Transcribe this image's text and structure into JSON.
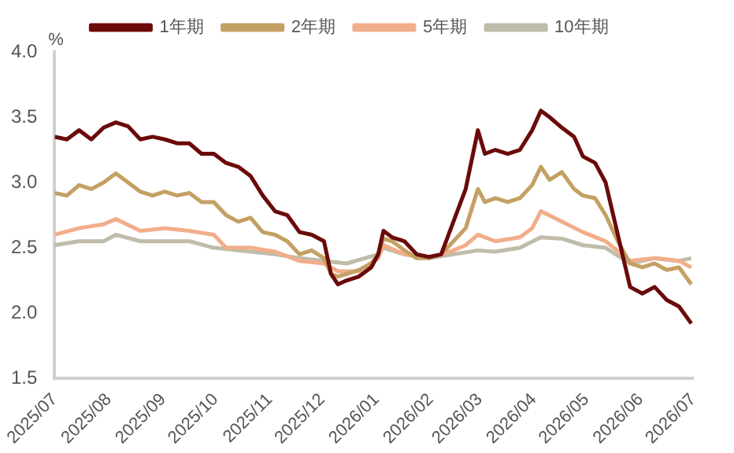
{
  "chart_data": {
    "type": "line",
    "ylabel": "%",
    "legend": "top",
    "grid": false,
    "marker": "none",
    "line_style": "solid",
    "xlim": [
      "2025-07",
      "2026-07"
    ],
    "xticks": [
      {
        "value": "2025-07",
        "label": "2025/07"
      },
      {
        "value": "2025-08",
        "label": "2025/08"
      },
      {
        "value": "2025-09",
        "label": "2025/09"
      },
      {
        "value": "2025-10",
        "label": "2025/10"
      },
      {
        "value": "2025-11",
        "label": "2025/11"
      },
      {
        "value": "2025-12",
        "label": "2025/12"
      },
      {
        "value": "2026-01",
        "label": "2026/01"
      },
      {
        "value": "2026-02",
        "label": "2026/02"
      },
      {
        "value": "2026-03",
        "label": "2026/03"
      },
      {
        "value": "2026-04",
        "label": "2026/04"
      },
      {
        "value": "2026-05",
        "label": "2026/05"
      },
      {
        "value": "2026-06",
        "label": "2026/06"
      },
      {
        "value": "2026-07",
        "label": "2026/07"
      }
    ],
    "ylim": [
      1.5,
      4.0
    ],
    "yticks": [
      {
        "value": 1.5,
        "label": "1.5"
      },
      {
        "value": 2.0,
        "label": "2.0"
      },
      {
        "value": 2.5,
        "label": "2.5"
      },
      {
        "value": 3.0,
        "label": "3.0"
      },
      {
        "value": 3.5,
        "label": "3.5"
      },
      {
        "value": 4.0,
        "label": "4.0"
      }
    ],
    "series": [
      {
        "name": "1年期",
        "color": "#6b0a0a",
        "x": [
          "2025-07-01",
          "2025-07-08",
          "2025-07-15",
          "2025-07-22",
          "2025-07-29",
          "2025-08-05",
          "2025-08-12",
          "2025-08-19",
          "2025-08-26",
          "2025-09-02",
          "2025-09-09",
          "2025-09-16",
          "2025-09-23",
          "2025-09-30",
          "2025-10-07",
          "2025-10-14",
          "2025-10-21",
          "2025-10-28",
          "2025-11-04",
          "2025-11-11",
          "2025-11-18",
          "2025-11-25",
          "2025-12-02",
          "2025-12-06",
          "2025-12-10",
          "2025-12-15",
          "2025-12-22",
          "2025-12-29",
          "2026-01-02",
          "2026-01-05",
          "2026-01-10",
          "2026-01-17",
          "2026-01-24",
          "2026-01-31",
          "2026-02-07",
          "2026-02-14",
          "2026-02-21",
          "2026-02-28",
          "2026-03-04",
          "2026-03-10",
          "2026-03-17",
          "2026-03-24",
          "2026-03-31",
          "2026-04-05",
          "2026-04-10",
          "2026-04-17",
          "2026-04-24",
          "2026-04-29",
          "2026-05-06",
          "2026-05-12",
          "2026-05-19",
          "2026-05-26",
          "2026-06-02",
          "2026-06-09",
          "2026-06-16",
          "2026-06-23",
          "2026-06-30"
        ],
        "values": [
          3.35,
          3.33,
          3.4,
          3.33,
          3.42,
          3.46,
          3.43,
          3.33,
          3.35,
          3.33,
          3.3,
          3.3,
          3.22,
          3.22,
          3.15,
          3.12,
          3.05,
          2.9,
          2.78,
          2.75,
          2.62,
          2.6,
          2.55,
          2.3,
          2.22,
          2.25,
          2.28,
          2.35,
          2.45,
          2.63,
          2.58,
          2.55,
          2.45,
          2.43,
          2.45,
          2.7,
          2.95,
          3.4,
          3.22,
          3.25,
          3.22,
          3.25,
          3.4,
          3.55,
          3.5,
          3.42,
          3.35,
          3.2,
          3.15,
          3.0,
          2.6,
          2.2,
          2.15,
          2.2,
          2.1,
          2.05,
          1.92
        ]
      },
      {
        "name": "2年期",
        "color": "#c4a063",
        "x": [
          "2025-07-01",
          "2025-07-08",
          "2025-07-15",
          "2025-07-22",
          "2025-07-29",
          "2025-08-05",
          "2025-08-12",
          "2025-08-19",
          "2025-08-26",
          "2025-09-02",
          "2025-09-09",
          "2025-09-16",
          "2025-09-23",
          "2025-09-30",
          "2025-10-07",
          "2025-10-14",
          "2025-10-21",
          "2025-10-28",
          "2025-11-04",
          "2025-11-11",
          "2025-11-18",
          "2025-11-25",
          "2025-12-02",
          "2025-12-06",
          "2025-12-10",
          "2025-12-15",
          "2025-12-22",
          "2025-12-29",
          "2026-01-02",
          "2026-01-05",
          "2026-01-10",
          "2026-01-17",
          "2026-01-24",
          "2026-01-31",
          "2026-02-07",
          "2026-02-14",
          "2026-02-21",
          "2026-02-28",
          "2026-03-04",
          "2026-03-10",
          "2026-03-17",
          "2026-03-24",
          "2026-03-31",
          "2026-04-05",
          "2026-04-10",
          "2026-04-17",
          "2026-04-24",
          "2026-04-29",
          "2026-05-06",
          "2026-05-12",
          "2026-05-19",
          "2026-05-26",
          "2026-06-02",
          "2026-06-09",
          "2026-06-16",
          "2026-06-23",
          "2026-06-30"
        ],
        "values": [
          2.92,
          2.9,
          2.98,
          2.95,
          3.0,
          3.07,
          3.0,
          2.93,
          2.9,
          2.93,
          2.9,
          2.92,
          2.85,
          2.85,
          2.75,
          2.7,
          2.73,
          2.62,
          2.6,
          2.55,
          2.45,
          2.48,
          2.42,
          2.3,
          2.28,
          2.3,
          2.33,
          2.38,
          2.45,
          2.57,
          2.55,
          2.48,
          2.42,
          2.42,
          2.45,
          2.55,
          2.65,
          2.95,
          2.85,
          2.88,
          2.85,
          2.88,
          2.98,
          3.12,
          3.02,
          3.08,
          2.95,
          2.9,
          2.88,
          2.75,
          2.55,
          2.38,
          2.35,
          2.38,
          2.33,
          2.35,
          2.22
        ]
      },
      {
        "name": "5年期",
        "color": "#f2ad8a",
        "x": [
          "2025-07-01",
          "2025-07-15",
          "2025-07-29",
          "2025-08-05",
          "2025-08-19",
          "2025-09-02",
          "2025-09-16",
          "2025-09-30",
          "2025-10-07",
          "2025-10-21",
          "2025-11-04",
          "2025-11-18",
          "2025-12-02",
          "2025-12-10",
          "2025-12-22",
          "2026-01-02",
          "2026-01-05",
          "2026-01-17",
          "2026-01-31",
          "2026-02-14",
          "2026-02-21",
          "2026-02-28",
          "2026-03-10",
          "2026-03-24",
          "2026-03-31",
          "2026-04-05",
          "2026-04-17",
          "2026-04-29",
          "2026-05-12",
          "2026-05-26",
          "2026-06-09",
          "2026-06-23",
          "2026-06-30"
        ],
        "values": [
          2.6,
          2.65,
          2.68,
          2.72,
          2.63,
          2.65,
          2.63,
          2.6,
          2.5,
          2.5,
          2.47,
          2.4,
          2.38,
          2.32,
          2.32,
          2.42,
          2.52,
          2.45,
          2.42,
          2.48,
          2.52,
          2.6,
          2.55,
          2.58,
          2.65,
          2.78,
          2.7,
          2.62,
          2.55,
          2.4,
          2.42,
          2.4,
          2.35
        ]
      },
      {
        "name": "10年期",
        "color": "#bfbcaa",
        "x": [
          "2025-07-01",
          "2025-07-15",
          "2025-07-29",
          "2025-08-05",
          "2025-08-19",
          "2025-09-02",
          "2025-09-16",
          "2025-09-30",
          "2025-10-14",
          "2025-11-04",
          "2025-11-18",
          "2025-12-02",
          "2025-12-15",
          "2026-01-02",
          "2026-01-05",
          "2026-01-17",
          "2026-01-31",
          "2026-02-14",
          "2026-02-28",
          "2026-03-10",
          "2026-03-24",
          "2026-04-05",
          "2026-04-17",
          "2026-04-29",
          "2026-05-12",
          "2026-05-26",
          "2026-06-09",
          "2026-06-23",
          "2026-06-30"
        ],
        "values": [
          2.52,
          2.55,
          2.55,
          2.6,
          2.55,
          2.55,
          2.55,
          2.5,
          2.48,
          2.45,
          2.42,
          2.4,
          2.38,
          2.45,
          2.5,
          2.45,
          2.42,
          2.45,
          2.48,
          2.47,
          2.5,
          2.58,
          2.57,
          2.52,
          2.5,
          2.38,
          2.42,
          2.4,
          2.42
        ]
      }
    ]
  }
}
